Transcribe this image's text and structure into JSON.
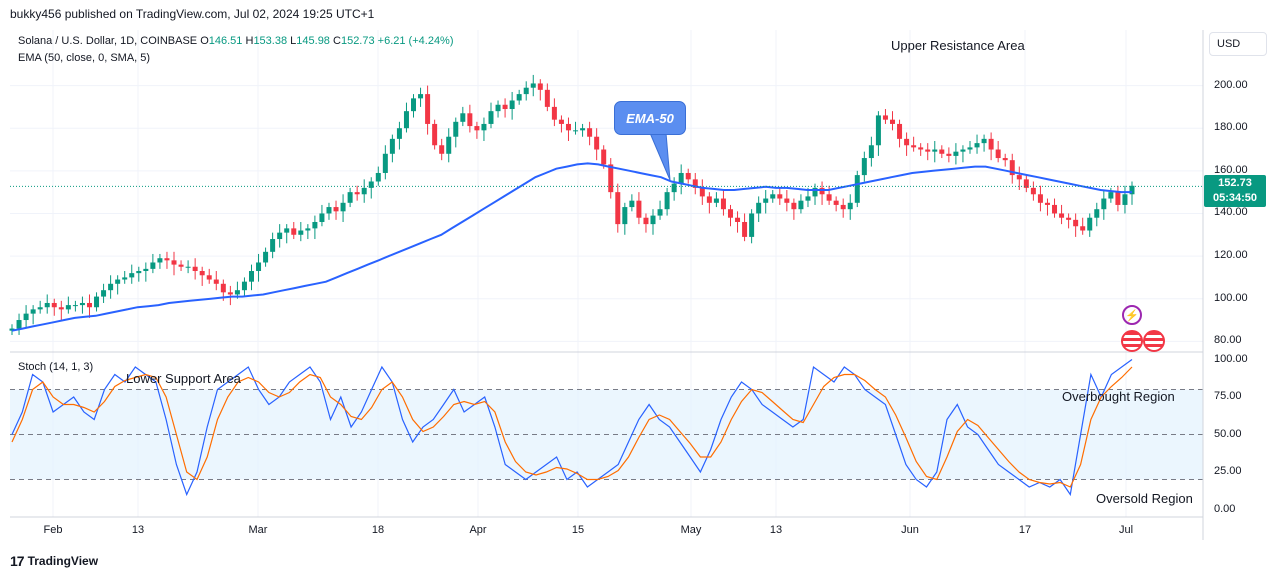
{
  "header": "bukky456 published on TradingView.com, Jul 02, 2024 19:25 UTC+1",
  "legend": {
    "symbol": "Solana / U.S. Dollar, 1D, COINBASE",
    "o_label": "O",
    "o": "146.51",
    "h_label": "H",
    "h": "153.38",
    "l_label": "L",
    "l": "145.98",
    "c_label": "C",
    "c": "152.73",
    "change": "+6.21 (+4.24%)",
    "ema": "EMA (50, close, 0, SMA, 5)",
    "stoch": "Stoch (14, 1, 3)"
  },
  "annotations": {
    "upper_resistance": "Upper Resistance Area",
    "ema_bubble": "EMA-50",
    "lower_support": "Lower Support Area",
    "overbought": "Overbought Region",
    "oversold": "Oversold Region"
  },
  "currency_button": "USD",
  "last_price": {
    "price": "152.73",
    "countdown": "05:34:50"
  },
  "price_axis_labels": [
    "200.00",
    "180.00",
    "160.00",
    "140.00",
    "120.00",
    "100.00",
    "80.00"
  ],
  "stoch_axis_labels": [
    "100.00",
    "75.00",
    "50.00",
    "25.00",
    "0.00"
  ],
  "time_axis_labels": [
    "Feb",
    "13",
    "Mar",
    "18",
    "Apr",
    "15",
    "May",
    "13",
    "Jun",
    "17",
    "Jul"
  ],
  "footer": "TradingView",
  "colors": {
    "up": "#089981",
    "down": "#f23645",
    "ema": "#2962ff",
    "stoch_k": "#2962ff",
    "stoch_d": "#ff6d00",
    "band": "#e3f2fd"
  },
  "chart_data": {
    "type": "candlestick",
    "price_ylim": [
      75,
      212
    ],
    "stoch_ylim": [
      -5,
      105
    ],
    "candles_close": [
      86,
      90,
      93,
      95,
      96,
      98,
      96,
      95,
      97,
      97,
      98,
      96,
      101,
      104,
      107,
      109,
      110,
      112,
      113,
      114,
      117,
      119,
      118,
      116,
      115,
      115,
      113,
      111,
      109,
      107,
      103,
      102,
      104,
      108,
      113,
      117,
      122,
      128,
      131,
      133,
      130,
      132,
      133,
      136,
      140,
      143,
      141,
      145,
      150,
      149,
      152,
      155,
      159,
      168,
      175,
      180,
      188,
      194,
      196,
      182,
      172,
      168,
      176,
      183,
      187,
      181,
      179,
      182,
      188,
      191,
      189,
      193,
      196,
      199,
      201,
      198,
      190,
      184,
      182,
      179,
      179,
      180,
      176,
      170,
      163,
      150,
      135,
      143,
      146,
      138,
      135,
      139,
      142,
      150,
      154,
      159,
      156,
      152,
      148,
      145,
      147,
      142,
      138,
      136,
      129,
      140,
      145,
      147,
      149,
      147,
      145,
      142,
      146,
      148,
      152,
      149,
      146,
      144,
      142,
      145,
      158,
      166,
      172,
      186,
      184,
      182,
      175,
      172,
      171,
      170,
      169,
      170,
      168,
      167,
      169,
      170,
      171,
      173,
      175,
      170,
      166,
      165,
      158,
      156,
      152,
      149,
      145,
      144,
      140,
      138,
      137,
      134,
      132,
      138,
      142,
      147,
      150,
      144,
      149,
      153
    ],
    "ema50": [
      85,
      86,
      87,
      88,
      89,
      90,
      91,
      91.5,
      92,
      93,
      94,
      95,
      96,
      96.5,
      97,
      98,
      98.5,
      99,
      99.5,
      100,
      100.5,
      101,
      101,
      101.5,
      102,
      103,
      104,
      105,
      106,
      107,
      108,
      110,
      112,
      114,
      116,
      118,
      120,
      122,
      124,
      126,
      128,
      130,
      133,
      136,
      139,
      142,
      145,
      148,
      151,
      154,
      157,
      159,
      161,
      162,
      163,
      163.5,
      163,
      162,
      161,
      160,
      159,
      158,
      157,
      155,
      154,
      153,
      152,
      151.5,
      151,
      151,
      151.5,
      152,
      152.5,
      152,
      152,
      151.5,
      151,
      151,
      151,
      152,
      153,
      154,
      155,
      156,
      157,
      158,
      159,
      159.5,
      160,
      160.5,
      161,
      161.5,
      162,
      162,
      161,
      160,
      159,
      158,
      157,
      156,
      155,
      154,
      153,
      152,
      151,
      150.5,
      150,
      150
    ],
    "stoch_k": [
      50,
      65,
      90,
      85,
      65,
      70,
      75,
      65,
      60,
      80,
      90,
      85,
      95,
      90,
      85,
      60,
      30,
      10,
      25,
      55,
      80,
      85,
      90,
      95,
      80,
      70,
      75,
      85,
      90,
      95,
      85,
      60,
      75,
      55,
      65,
      80,
      95,
      85,
      60,
      45,
      55,
      60,
      70,
      80,
      65,
      70,
      75,
      55,
      30,
      25,
      20,
      25,
      30,
      35,
      20,
      25,
      15,
      20,
      25,
      30,
      45,
      60,
      70,
      60,
      55,
      45,
      35,
      25,
      40,
      60,
      75,
      85,
      80,
      70,
      65,
      60,
      55,
      60,
      95,
      90,
      85,
      95,
      90,
      80,
      75,
      70,
      50,
      30,
      20,
      15,
      25,
      60,
      70,
      55,
      50,
      40,
      30,
      25,
      20,
      15,
      18,
      15,
      20,
      10,
      50,
      90,
      75,
      90,
      95,
      100
    ],
    "stoch_d": [
      45,
      60,
      80,
      85,
      75,
      70,
      70,
      68,
      65,
      72,
      82,
      86,
      88,
      90,
      88,
      75,
      50,
      25,
      20,
      35,
      60,
      75,
      85,
      88,
      85,
      78,
      75,
      78,
      85,
      90,
      88,
      75,
      70,
      62,
      60,
      68,
      80,
      85,
      75,
      60,
      52,
      55,
      62,
      70,
      72,
      70,
      72,
      65,
      45,
      32,
      25,
      23,
      25,
      28,
      27,
      24,
      20,
      20,
      22,
      26,
      35,
      48,
      60,
      63,
      60,
      52,
      44,
      35,
      35,
      45,
      60,
      72,
      80,
      78,
      72,
      66,
      60,
      58,
      70,
      82,
      88,
      90,
      90,
      86,
      80,
      75,
      63,
      48,
      32,
      22,
      20,
      35,
      52,
      60,
      56,
      48,
      40,
      32,
      25,
      20,
      18,
      17,
      18,
      15,
      30,
      60,
      75,
      82,
      88,
      95
    ]
  }
}
